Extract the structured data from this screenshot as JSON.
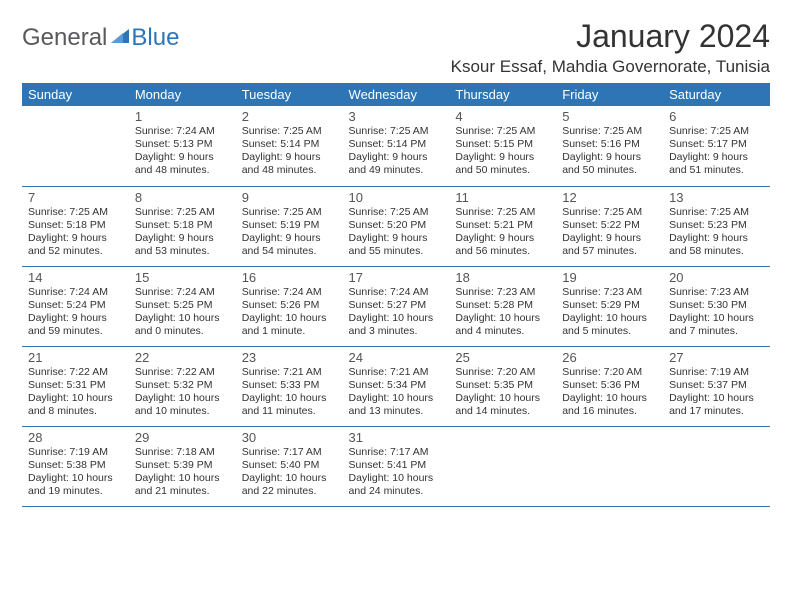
{
  "logo": {
    "general": "General",
    "blue": "Blue"
  },
  "title": "January 2024",
  "location": "Ksour Essaf, Mahdia Governorate, Tunisia",
  "colors": {
    "header_bg": "#2e75b6",
    "header_text": "#ffffff",
    "text": "#333333",
    "logo_gray": "#58595b",
    "logo_blue": "#2e75b6",
    "border": "#2e75b6",
    "daynum": "#555555",
    "background": "#ffffff"
  },
  "weekdays": [
    "Sunday",
    "Monday",
    "Tuesday",
    "Wednesday",
    "Thursday",
    "Friday",
    "Saturday"
  ],
  "rows": [
    [
      null,
      {
        "n": "1",
        "sr": "7:24 AM",
        "ss": "5:13 PM",
        "dl": "9 hours and 48 minutes."
      },
      {
        "n": "2",
        "sr": "7:25 AM",
        "ss": "5:14 PM",
        "dl": "9 hours and 48 minutes."
      },
      {
        "n": "3",
        "sr": "7:25 AM",
        "ss": "5:14 PM",
        "dl": "9 hours and 49 minutes."
      },
      {
        "n": "4",
        "sr": "7:25 AM",
        "ss": "5:15 PM",
        "dl": "9 hours and 50 minutes."
      },
      {
        "n": "5",
        "sr": "7:25 AM",
        "ss": "5:16 PM",
        "dl": "9 hours and 50 minutes."
      },
      {
        "n": "6",
        "sr": "7:25 AM",
        "ss": "5:17 PM",
        "dl": "9 hours and 51 minutes."
      }
    ],
    [
      {
        "n": "7",
        "sr": "7:25 AM",
        "ss": "5:18 PM",
        "dl": "9 hours and 52 minutes."
      },
      {
        "n": "8",
        "sr": "7:25 AM",
        "ss": "5:18 PM",
        "dl": "9 hours and 53 minutes."
      },
      {
        "n": "9",
        "sr": "7:25 AM",
        "ss": "5:19 PM",
        "dl": "9 hours and 54 minutes."
      },
      {
        "n": "10",
        "sr": "7:25 AM",
        "ss": "5:20 PM",
        "dl": "9 hours and 55 minutes."
      },
      {
        "n": "11",
        "sr": "7:25 AM",
        "ss": "5:21 PM",
        "dl": "9 hours and 56 minutes."
      },
      {
        "n": "12",
        "sr": "7:25 AM",
        "ss": "5:22 PM",
        "dl": "9 hours and 57 minutes."
      },
      {
        "n": "13",
        "sr": "7:25 AM",
        "ss": "5:23 PM",
        "dl": "9 hours and 58 minutes."
      }
    ],
    [
      {
        "n": "14",
        "sr": "7:24 AM",
        "ss": "5:24 PM",
        "dl": "9 hours and 59 minutes."
      },
      {
        "n": "15",
        "sr": "7:24 AM",
        "ss": "5:25 PM",
        "dl": "10 hours and 0 minutes."
      },
      {
        "n": "16",
        "sr": "7:24 AM",
        "ss": "5:26 PM",
        "dl": "10 hours and 1 minute."
      },
      {
        "n": "17",
        "sr": "7:24 AM",
        "ss": "5:27 PM",
        "dl": "10 hours and 3 minutes."
      },
      {
        "n": "18",
        "sr": "7:23 AM",
        "ss": "5:28 PM",
        "dl": "10 hours and 4 minutes."
      },
      {
        "n": "19",
        "sr": "7:23 AM",
        "ss": "5:29 PM",
        "dl": "10 hours and 5 minutes."
      },
      {
        "n": "20",
        "sr": "7:23 AM",
        "ss": "5:30 PM",
        "dl": "10 hours and 7 minutes."
      }
    ],
    [
      {
        "n": "21",
        "sr": "7:22 AM",
        "ss": "5:31 PM",
        "dl": "10 hours and 8 minutes."
      },
      {
        "n": "22",
        "sr": "7:22 AM",
        "ss": "5:32 PM",
        "dl": "10 hours and 10 minutes."
      },
      {
        "n": "23",
        "sr": "7:21 AM",
        "ss": "5:33 PM",
        "dl": "10 hours and 11 minutes."
      },
      {
        "n": "24",
        "sr": "7:21 AM",
        "ss": "5:34 PM",
        "dl": "10 hours and 13 minutes."
      },
      {
        "n": "25",
        "sr": "7:20 AM",
        "ss": "5:35 PM",
        "dl": "10 hours and 14 minutes."
      },
      {
        "n": "26",
        "sr": "7:20 AM",
        "ss": "5:36 PM",
        "dl": "10 hours and 16 minutes."
      },
      {
        "n": "27",
        "sr": "7:19 AM",
        "ss": "5:37 PM",
        "dl": "10 hours and 17 minutes."
      }
    ],
    [
      {
        "n": "28",
        "sr": "7:19 AM",
        "ss": "5:38 PM",
        "dl": "10 hours and 19 minutes."
      },
      {
        "n": "29",
        "sr": "7:18 AM",
        "ss": "5:39 PM",
        "dl": "10 hours and 21 minutes."
      },
      {
        "n": "30",
        "sr": "7:17 AM",
        "ss": "5:40 PM",
        "dl": "10 hours and 22 minutes."
      },
      {
        "n": "31",
        "sr": "7:17 AM",
        "ss": "5:41 PM",
        "dl": "10 hours and 24 minutes."
      },
      null,
      null,
      null
    ]
  ],
  "labels": {
    "sunrise": "Sunrise:",
    "sunset": "Sunset:",
    "daylight": "Daylight:"
  }
}
